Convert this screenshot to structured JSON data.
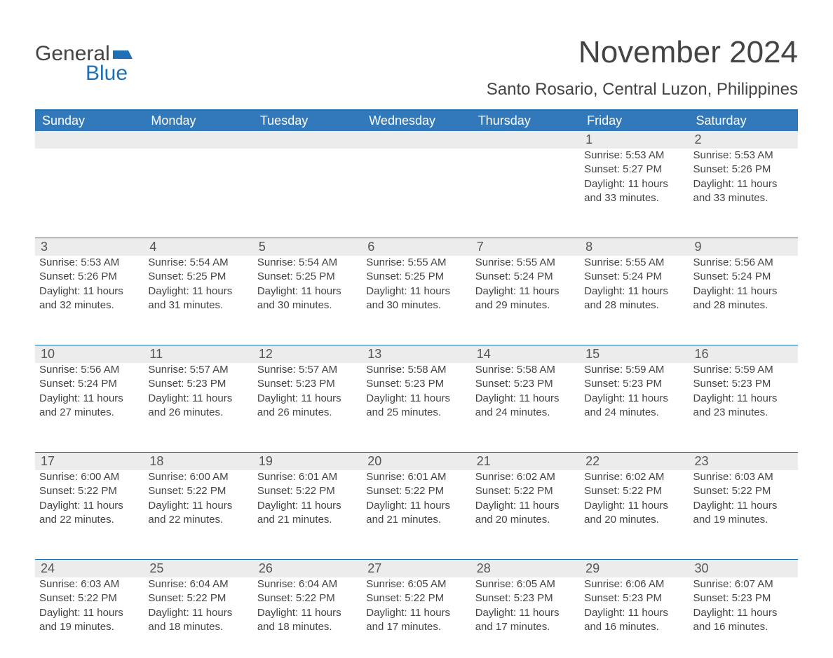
{
  "brand": {
    "word1": "General",
    "word2": "Blue",
    "flag_color": "#1f6fb5"
  },
  "title": {
    "month": "November 2024",
    "location": "Santo Rosario, Central Luzon, Philippines"
  },
  "colors": {
    "header_bg": "#3279bb",
    "header_border": "#1f6fb5",
    "daynum_bg": "#ececec",
    "text": "#444444",
    "background": "#ffffff"
  },
  "fonts": {
    "body": "Arial",
    "title_size_pt": 33,
    "location_size_pt": 18,
    "dayname_size_pt": 14,
    "cell_size_pt": 11
  },
  "daynames": [
    "Sunday",
    "Monday",
    "Tuesday",
    "Wednesday",
    "Thursday",
    "Friday",
    "Saturday"
  ],
  "weeks": [
    [
      {
        "empty": true
      },
      {
        "empty": true
      },
      {
        "empty": true
      },
      {
        "empty": true
      },
      {
        "empty": true
      },
      {
        "day": "1",
        "sunrise": "Sunrise: 5:53 AM",
        "sunset": "Sunset: 5:27 PM",
        "daylight": "Daylight: 11 hours and 33 minutes."
      },
      {
        "day": "2",
        "sunrise": "Sunrise: 5:53 AM",
        "sunset": "Sunset: 5:26 PM",
        "daylight": "Daylight: 11 hours and 33 minutes."
      }
    ],
    [
      {
        "day": "3",
        "sunrise": "Sunrise: 5:53 AM",
        "sunset": "Sunset: 5:26 PM",
        "daylight": "Daylight: 11 hours and 32 minutes."
      },
      {
        "day": "4",
        "sunrise": "Sunrise: 5:54 AM",
        "sunset": "Sunset: 5:25 PM",
        "daylight": "Daylight: 11 hours and 31 minutes."
      },
      {
        "day": "5",
        "sunrise": "Sunrise: 5:54 AM",
        "sunset": "Sunset: 5:25 PM",
        "daylight": "Daylight: 11 hours and 30 minutes."
      },
      {
        "day": "6",
        "sunrise": "Sunrise: 5:55 AM",
        "sunset": "Sunset: 5:25 PM",
        "daylight": "Daylight: 11 hours and 30 minutes."
      },
      {
        "day": "7",
        "sunrise": "Sunrise: 5:55 AM",
        "sunset": "Sunset: 5:24 PM",
        "daylight": "Daylight: 11 hours and 29 minutes."
      },
      {
        "day": "8",
        "sunrise": "Sunrise: 5:55 AM",
        "sunset": "Sunset: 5:24 PM",
        "daylight": "Daylight: 11 hours and 28 minutes."
      },
      {
        "day": "9",
        "sunrise": "Sunrise: 5:56 AM",
        "sunset": "Sunset: 5:24 PM",
        "daylight": "Daylight: 11 hours and 28 minutes."
      }
    ],
    [
      {
        "day": "10",
        "sunrise": "Sunrise: 5:56 AM",
        "sunset": "Sunset: 5:24 PM",
        "daylight": "Daylight: 11 hours and 27 minutes."
      },
      {
        "day": "11",
        "sunrise": "Sunrise: 5:57 AM",
        "sunset": "Sunset: 5:23 PM",
        "daylight": "Daylight: 11 hours and 26 minutes."
      },
      {
        "day": "12",
        "sunrise": "Sunrise: 5:57 AM",
        "sunset": "Sunset: 5:23 PM",
        "daylight": "Daylight: 11 hours and 26 minutes."
      },
      {
        "day": "13",
        "sunrise": "Sunrise: 5:58 AM",
        "sunset": "Sunset: 5:23 PM",
        "daylight": "Daylight: 11 hours and 25 minutes."
      },
      {
        "day": "14",
        "sunrise": "Sunrise: 5:58 AM",
        "sunset": "Sunset: 5:23 PM",
        "daylight": "Daylight: 11 hours and 24 minutes."
      },
      {
        "day": "15",
        "sunrise": "Sunrise: 5:59 AM",
        "sunset": "Sunset: 5:23 PM",
        "daylight": "Daylight: 11 hours and 24 minutes."
      },
      {
        "day": "16",
        "sunrise": "Sunrise: 5:59 AM",
        "sunset": "Sunset: 5:23 PM",
        "daylight": "Daylight: 11 hours and 23 minutes."
      }
    ],
    [
      {
        "day": "17",
        "sunrise": "Sunrise: 6:00 AM",
        "sunset": "Sunset: 5:22 PM",
        "daylight": "Daylight: 11 hours and 22 minutes."
      },
      {
        "day": "18",
        "sunrise": "Sunrise: 6:00 AM",
        "sunset": "Sunset: 5:22 PM",
        "daylight": "Daylight: 11 hours and 22 minutes."
      },
      {
        "day": "19",
        "sunrise": "Sunrise: 6:01 AM",
        "sunset": "Sunset: 5:22 PM",
        "daylight": "Daylight: 11 hours and 21 minutes."
      },
      {
        "day": "20",
        "sunrise": "Sunrise: 6:01 AM",
        "sunset": "Sunset: 5:22 PM",
        "daylight": "Daylight: 11 hours and 21 minutes."
      },
      {
        "day": "21",
        "sunrise": "Sunrise: 6:02 AM",
        "sunset": "Sunset: 5:22 PM",
        "daylight": "Daylight: 11 hours and 20 minutes."
      },
      {
        "day": "22",
        "sunrise": "Sunrise: 6:02 AM",
        "sunset": "Sunset: 5:22 PM",
        "daylight": "Daylight: 11 hours and 20 minutes."
      },
      {
        "day": "23",
        "sunrise": "Sunrise: 6:03 AM",
        "sunset": "Sunset: 5:22 PM",
        "daylight": "Daylight: 11 hours and 19 minutes."
      }
    ],
    [
      {
        "day": "24",
        "sunrise": "Sunrise: 6:03 AM",
        "sunset": "Sunset: 5:22 PM",
        "daylight": "Daylight: 11 hours and 19 minutes."
      },
      {
        "day": "25",
        "sunrise": "Sunrise: 6:04 AM",
        "sunset": "Sunset: 5:22 PM",
        "daylight": "Daylight: 11 hours and 18 minutes."
      },
      {
        "day": "26",
        "sunrise": "Sunrise: 6:04 AM",
        "sunset": "Sunset: 5:22 PM",
        "daylight": "Daylight: 11 hours and 18 minutes."
      },
      {
        "day": "27",
        "sunrise": "Sunrise: 6:05 AM",
        "sunset": "Sunset: 5:22 PM",
        "daylight": "Daylight: 11 hours and 17 minutes."
      },
      {
        "day": "28",
        "sunrise": "Sunrise: 6:05 AM",
        "sunset": "Sunset: 5:23 PM",
        "daylight": "Daylight: 11 hours and 17 minutes."
      },
      {
        "day": "29",
        "sunrise": "Sunrise: 6:06 AM",
        "sunset": "Sunset: 5:23 PM",
        "daylight": "Daylight: 11 hours and 16 minutes."
      },
      {
        "day": "30",
        "sunrise": "Sunrise: 6:07 AM",
        "sunset": "Sunset: 5:23 PM",
        "daylight": "Daylight: 11 hours and 16 minutes."
      }
    ]
  ]
}
